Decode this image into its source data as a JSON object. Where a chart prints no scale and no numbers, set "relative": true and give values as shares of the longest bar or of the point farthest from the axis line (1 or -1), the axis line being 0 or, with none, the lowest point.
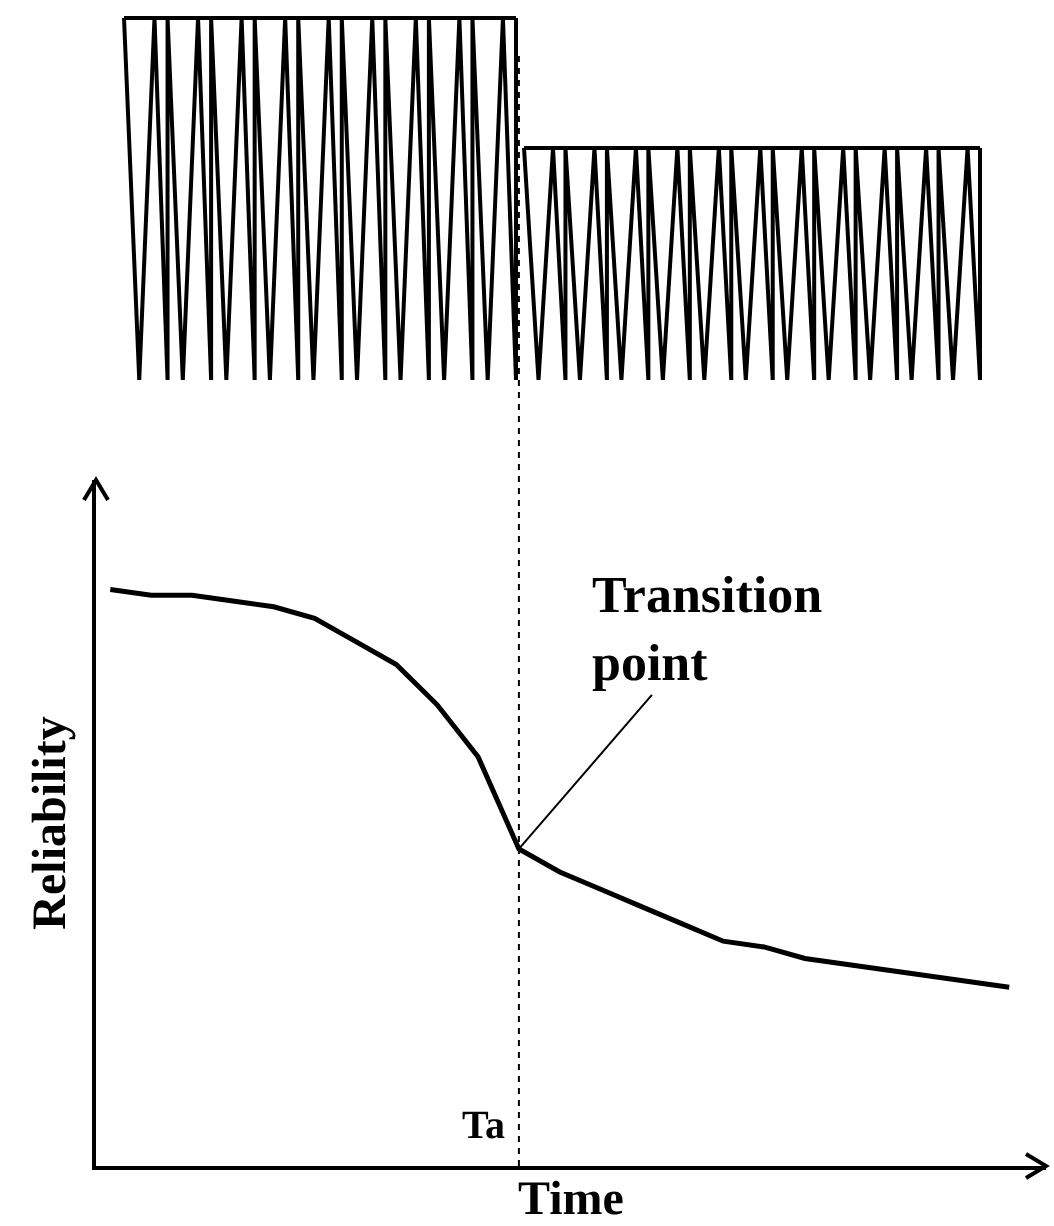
{
  "chart_data": {
    "type": "line",
    "relative": true,
    "xlabel": "Time",
    "ylabel": "Reliability",
    "marker": "none",
    "line_style": "solid",
    "categories": [
      null,
      null,
      null,
      null,
      null,
      null,
      null,
      null,
      null,
      null,
      null,
      null,
      null,
      null,
      null,
      null,
      null,
      null,
      null,
      null,
      null,
      null,
      null
    ],
    "series": [
      {
        "color": "#000000",
        "values": [
          1.0,
          0.99,
          0.99,
          0.98,
          0.97,
          0.95,
          0.91,
          0.87,
          0.8,
          0.71,
          0.55,
          0.51,
          0.48,
          0.45,
          0.42,
          0.39,
          0.38,
          0.36,
          0.35,
          0.34,
          0.33,
          0.32,
          0.31
        ]
      }
    ],
    "ref_lines": [
      {
        "axis": "x",
        "label": "Ta",
        "color": "#000000",
        "line_style": "dotted"
      }
    ],
    "annotations": [
      "Transition point"
    ]
  }
}
